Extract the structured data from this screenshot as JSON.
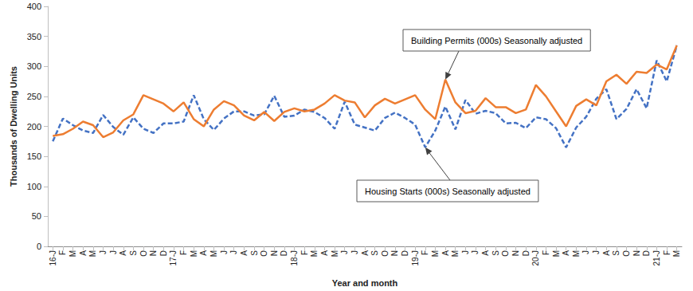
{
  "chart_data": {
    "type": "line",
    "x_label": "Year and month",
    "y_label": "Thousands of Dwelling Units",
    "categories": [
      "16-J",
      "F",
      "M",
      "A",
      "M",
      "J",
      "J",
      "A",
      "S",
      "O",
      "N",
      "D",
      "17-J",
      "F",
      "M",
      "A",
      "M",
      "J",
      "J",
      "A",
      "S",
      "O",
      "N",
      "D",
      "18-J",
      "F",
      "M",
      "A",
      "M",
      "J",
      "J",
      "A",
      "S",
      "O",
      "N",
      "D",
      "19-J",
      "F",
      "M",
      "A",
      "M",
      "J",
      "J",
      "A",
      "S",
      "O",
      "N",
      "D",
      "20-J",
      "F",
      "M",
      "A",
      "M",
      "J",
      "J",
      "A",
      "S",
      "O",
      "N",
      "D",
      "21-J",
      "F",
      "M"
    ],
    "series": [
      {
        "name": "Building Permits (000s) Seasonally adjusted",
        "color": "#ed7d31",
        "line_style": "solid",
        "values": [
          184,
          187,
          196,
          208,
          202,
          182,
          190,
          210,
          220,
          252,
          245,
          238,
          225,
          240,
          212,
          200,
          228,
          242,
          235,
          218,
          210,
          224,
          209,
          224,
          230,
          225,
          228,
          238,
          252,
          243,
          240,
          215,
          235,
          246,
          238,
          245,
          252,
          228,
          212,
          278,
          240,
          222,
          226,
          247,
          232,
          232,
          222,
          228,
          269,
          250,
          225,
          200,
          234,
          245,
          235,
          275,
          286,
          271,
          291,
          289,
          303,
          295,
          335
        ]
      },
      {
        "name": "Housing Starts (000s) Seasonally adjusted",
        "color": "#4472c4",
        "line_style": "dashed",
        "values": [
          175,
          213,
          202,
          193,
          189,
          219,
          199,
          186,
          215,
          196,
          189,
          205,
          205,
          208,
          252,
          212,
          194,
          213,
          225,
          225,
          218,
          220,
          251,
          216,
          218,
          228,
          224,
          214,
          196,
          241,
          203,
          198,
          193,
          214,
          223,
          214,
          203,
          165,
          193,
          233,
          195,
          244,
          221,
          226,
          222,
          205,
          206,
          197,
          215,
          212,
          197,
          165,
          198,
          216,
          246,
          262,
          212,
          229,
          262,
          230,
          310,
          275,
          335
        ]
      }
    ],
    "annotations": [
      {
        "text": "Building Permits (000s) Seasonally adjusted",
        "x": 39,
        "y": 278
      },
      {
        "text": "Housing Starts (000s) Seasonally adjusted",
        "x": 37,
        "y": 165
      }
    ],
    "ylim": [
      0,
      400
    ],
    "yticks": [
      0,
      50,
      100,
      150,
      200,
      250,
      300,
      350,
      400
    ],
    "grid": false
  }
}
